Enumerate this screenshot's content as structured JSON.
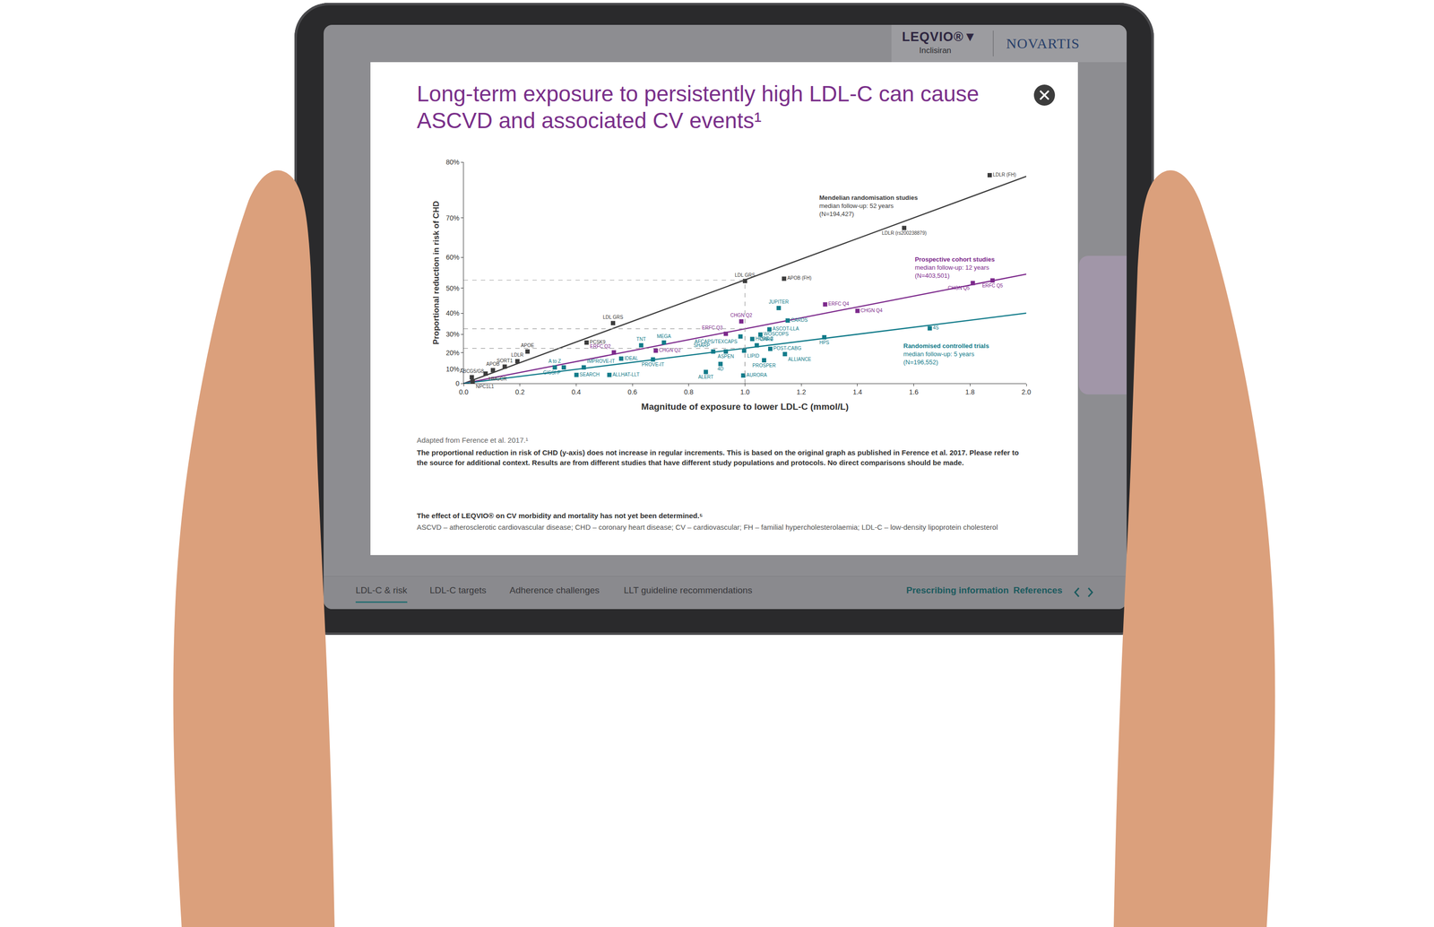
{
  "chart_data": {
    "type": "scatter",
    "title": "Long-term exposure to persistently high LDL-C can cause ASCVD and associated CV events¹",
    "x_label": "Magnitude of exposure to lower LDL-C (mmol/L)",
    "y_label": "Proportional reduction in risk of CHD",
    "xlim": [
      0,
      2
    ],
    "xticks": [
      {
        "value": 0,
        "label": "0.0"
      },
      0.2,
      0.4,
      0.6,
      0.8,
      {
        "value": 1,
        "label": "1.0"
      },
      1.2,
      1.4,
      1.6,
      1.8,
      {
        "value": 2,
        "label": "2.0"
      }
    ],
    "ylim": [
      0,
      80
    ],
    "yticks": [
      0,
      {
        "value": 10,
        "label": "10%"
      },
      {
        "value": 20,
        "label": "20%"
      },
      {
        "value": 30,
        "label": "30%"
      },
      {
        "value": 40,
        "label": "40%"
      },
      {
        "value": 50,
        "label": "50%"
      },
      {
        "value": 60,
        "label": "60%"
      },
      {
        "value": 70,
        "label": "70%"
      },
      {
        "value": 80,
        "label": "80%"
      }
    ],
    "grid": false,
    "series": [
      {
        "name": "Mendelian randomisation studies",
        "annotation": [
          "median follow-up: 52 years",
          "(N=194,427)"
        ],
        "color": "#3c3c3c",
        "marker": "square",
        "line_style": "solid",
        "fit": {
          "x": [
            0,
            2
          ],
          "values": [
            0,
            77.8
          ]
        },
        "labels": [
          "LDLR (FH)",
          "LDLR (rs200238879)",
          "APOB (FH)",
          "LDL GRS",
          "LDL GRS",
          "PCSK9",
          "APOE",
          "LDLR",
          "SORT1",
          "APOB",
          "ABCG5/G8",
          "HMGCR",
          "NPC1L1"
        ],
        "x": [
          1.87,
          1.566,
          1.139,
          1.0,
          0.531,
          0.437,
          0.227,
          0.191,
          0.146,
          0.104,
          0.029,
          0.078,
          0.032
        ],
        "values": [
          78,
          67.7,
          53.3,
          52.5,
          35.5,
          25.7,
          20.7,
          14.9,
          11.5,
          9.2,
          4.4,
          6.9,
          1.5
        ]
      },
      {
        "name": "Prospective cohort studies",
        "annotation": [
          "median follow-up: 12 years",
          "(N=403,501)"
        ],
        "color": "#7d2a8c",
        "marker": "square",
        "line_style": "solid",
        "fit": {
          "x": [
            0,
            2
          ],
          "values": [
            0,
            54.8
          ]
        },
        "labels": [
          "ERFC Q5",
          "CHGN Q5",
          "ERFC Q4",
          "CHGN Q4",
          "CHGN Q2",
          "ERFC Q3",
          "ERFC Q2",
          "CHGN Q2"
        ],
        "x": [
          1.88,
          1.81,
          1.285,
          1.4,
          0.987,
          0.932,
          0.534,
          0.683
        ],
        "values": [
          52.7,
          51.8,
          43.7,
          41,
          36.3,
          30.3,
          20.2,
          21.2
        ]
      },
      {
        "name": "Randomised controlled trials",
        "annotation": [
          "median follow-up: 5 years",
          "(N=196,552)"
        ],
        "color": "#127b8a",
        "marker": "square",
        "line_style": "solid",
        "fit": {
          "x": [
            0,
            2
          ],
          "values": [
            0,
            40
          ]
        },
        "labels": [
          "4S",
          "HPS",
          "CARDS",
          "JUPITER",
          "ASCOT-LLA",
          "WOSCOPS",
          "HOPE-3",
          "AFCAPS/TEXCAPS",
          "CARE",
          "POST-CABG",
          "LIPID",
          "SHARP",
          "ASPEN",
          "ALLIANCE",
          "PROSPER",
          "4D",
          "ALERT",
          "AURORA",
          "MEGA",
          "TNT",
          "IDEAL",
          "PROVE-IT",
          "A to Z",
          "GISSI-P",
          "IMPROVE-IT",
          "SEARCH",
          "ALLHAT-LLT"
        ],
        "x": [
          1.657,
          1.282,
          1.152,
          1.12,
          1.087,
          1.055,
          1.026,
          0.984,
          1.042,
          1.09,
          0.997,
          0.887,
          0.932,
          1.142,
          1.068,
          0.913,
          0.861,
          0.994,
          0.712,
          0.631,
          0.56,
          0.673,
          0.324,
          0.356,
          0.427,
          0.401,
          0.518
        ],
        "values": [
          33,
          28.5,
          36.7,
          42.2,
          32.5,
          29.9,
          27.6,
          28.9,
          24.2,
          22.2,
          21.2,
          20.7,
          20.7,
          19.2,
          15.5,
          13.2,
          8,
          5.6,
          25.7,
          24.2,
          16.5,
          16,
          11,
          11,
          11,
          6,
          6
        ]
      }
    ],
    "reference_lines": [
      {
        "x": 1,
        "y": 52.8
      },
      {
        "x": 1,
        "y": 32.8
      },
      {
        "x": 1,
        "y": 22.5
      }
    ]
  },
  "page": {
    "header": {
      "brand": "LEQVIO®▼",
      "generic": "Inclisiran",
      "company": "NOVARTIS"
    },
    "source": "Adapted from Ference et al. 2017.¹",
    "note": "The proportional reduction in risk of CHD (y-axis) does not increase in regular increments. This is based on the original graph as published in Ference et al. 2017. Please refer to the source for additional context. Results are from different studies that have different study populations and protocols. No direct comparisons should be made.",
    "disclaimer": "The effect of LEQVIO® on CV morbidity and mortality has not yet been determined.⁵",
    "abbreviations": "ASCVD – atherosclerotic cardiovascular disease; CHD – coronary heart disease; CV – cardiovascular; FH – familial hypercholesterolaemia; LDL-C – low-density lipoprotein cholesterol",
    "tabs": [
      "LDL-C & risk",
      "LDL-C targets",
      "Adherence challenges",
      "LLT guideline recommendations"
    ],
    "links": [
      "Prescribing information",
      "References"
    ]
  }
}
